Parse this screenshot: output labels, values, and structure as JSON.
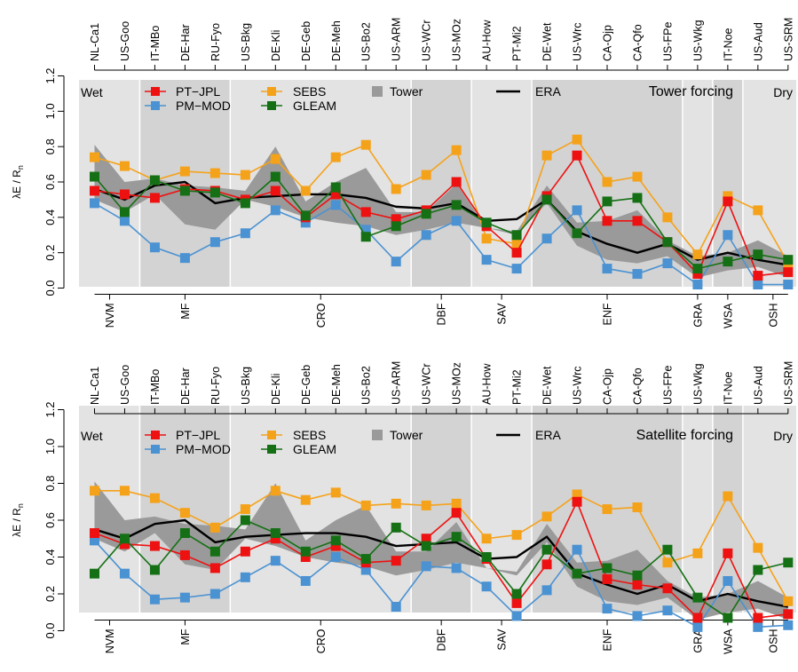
{
  "chart_data": [
    {
      "type": "line",
      "title": "Tower forcing",
      "ylabel_main": "λE / R",
      "ylabel_sub": "n",
      "ylim": [
        0,
        1.2
      ],
      "yticks": [
        "0.0",
        "0.2",
        "0.4",
        "0.6",
        "0.8",
        "1.0",
        "1.2"
      ],
      "corner_left": "Wet",
      "corner_right": "Dry",
      "sites": [
        "NL-Ca1",
        "US-Goo",
        "IT-MBo",
        "DE-Har",
        "RU-Fyo",
        "US-Bkg",
        "DE-Kli",
        "DE-Geb",
        "DE-Meh",
        "US-Bo2",
        "US-ARM",
        "US-WCr",
        "US-MOz",
        "AU-How",
        "PT-Mi2",
        "DE-Wet",
        "US-Wrc",
        "CA-Ojp",
        "CA-Qfo",
        "US-FPe",
        "US-Wkg",
        "IT-Noe",
        "US-Aud",
        "US-SRM"
      ],
      "groups": [
        {
          "name": "NVM",
          "start": 0,
          "end": 1
        },
        {
          "name": "MF",
          "start": 2,
          "end": 4
        },
        {
          "name": "CRO",
          "start": 5,
          "end": 10
        },
        {
          "name": "DBF",
          "start": 11,
          "end": 12
        },
        {
          "name": "SAV",
          "start": 13,
          "end": 14
        },
        {
          "name": "ENF",
          "start": 15,
          "end": 19
        },
        {
          "name": "GRA",
          "start": 20,
          "end": 20
        },
        {
          "name": "WSA",
          "start": 21,
          "end": 21
        },
        {
          "name": "OSH",
          "start": 22,
          "end": 23
        }
      ],
      "legend": {
        "PT-JPL": "PT−JPL",
        "PM-MOD": "PM−MOD",
        "SEBS": "SEBS",
        "GLEAM": "GLEAM",
        "Tower": "Tower",
        "ERA": "ERA"
      },
      "colors": {
        "PT-JPL": "#ee1111",
        "PM-MOD": "#4b92d2",
        "SEBS": "#f5a21b",
        "GLEAM": "#157015",
        "ERA": "#000000",
        "Tower": "#9a9a9a",
        "band_light": "#e3e3e3",
        "band_dark": "#d3d3d3"
      },
      "tower_band": {
        "lower": [
          0.5,
          0.43,
          0.53,
          0.36,
          0.33,
          0.5,
          0.46,
          0.4,
          0.37,
          0.35,
          0.3,
          0.33,
          0.37,
          0.34,
          0.3,
          0.48,
          0.24,
          0.16,
          0.14,
          0.18,
          0.06,
          0.1,
          0.12,
          0.06
        ],
        "upper": [
          0.81,
          0.6,
          0.62,
          0.58,
          0.57,
          0.55,
          0.8,
          0.49,
          0.6,
          0.68,
          0.43,
          0.43,
          0.59,
          0.34,
          0.32,
          0.58,
          0.37,
          0.38,
          0.44,
          0.27,
          0.18,
          0.2,
          0.27,
          0.18
        ]
      },
      "series": [
        {
          "name": "ERA",
          "values": [
            0.56,
            0.5,
            0.58,
            0.6,
            0.48,
            0.51,
            0.52,
            0.53,
            0.53,
            0.51,
            0.46,
            0.45,
            0.48,
            0.38,
            0.39,
            0.5,
            0.32,
            0.25,
            0.2,
            0.25,
            0.16,
            0.2,
            0.16,
            0.13
          ]
        },
        {
          "name": "PM-MOD",
          "values": [
            0.48,
            0.38,
            0.23,
            0.17,
            0.26,
            0.31,
            0.44,
            0.37,
            0.47,
            0.33,
            0.15,
            0.3,
            0.38,
            0.16,
            0.11,
            0.28,
            0.44,
            0.11,
            0.08,
            0.14,
            0.02,
            0.3,
            0.02,
            0.02
          ]
        },
        {
          "name": "SEBS",
          "values": [
            0.74,
            0.69,
            0.61,
            0.66,
            0.65,
            0.64,
            0.73,
            0.55,
            0.74,
            0.81,
            0.56,
            0.64,
            0.78,
            0.28,
            0.25,
            0.75,
            0.84,
            0.6,
            0.63,
            0.4,
            0.19,
            0.52,
            0.44,
            0.14
          ]
        },
        {
          "name": "PT-JPL",
          "values": [
            0.55,
            0.53,
            0.51,
            0.56,
            0.55,
            0.5,
            0.55,
            0.4,
            0.53,
            0.43,
            0.39,
            0.44,
            0.6,
            0.35,
            0.2,
            0.52,
            0.75,
            0.38,
            0.38,
            0.26,
            0.08,
            0.49,
            0.07,
            0.09
          ]
        },
        {
          "name": "GLEAM",
          "values": [
            0.63,
            0.43,
            0.61,
            0.55,
            0.54,
            0.48,
            0.63,
            0.41,
            0.57,
            0.29,
            0.35,
            0.42,
            0.47,
            0.37,
            0.3,
            0.5,
            0.31,
            0.49,
            0.51,
            0.26,
            0.11,
            0.15,
            0.19,
            0.16
          ]
        }
      ]
    },
    {
      "type": "line",
      "title": "Satellite forcing",
      "ylabel_main": "λE / R",
      "ylabel_sub": "n",
      "ylim": [
        0,
        1.2
      ],
      "yticks": [
        "0.0",
        "0.2",
        "0.4",
        "0.6",
        "0.8",
        "1.0",
        "1.2"
      ],
      "corner_left": "Wet",
      "corner_right": "Dry",
      "sites": [
        "NL-Ca1",
        "US-Goo",
        "IT-MBo",
        "DE-Har",
        "RU-Fyo",
        "US-Bkg",
        "DE-Kli",
        "DE-Geb",
        "DE-Meh",
        "US-Bo2",
        "US-ARM",
        "US-WCr",
        "US-MOz",
        "AU-How",
        "PT-Mi2",
        "DE-Wet",
        "US-Wrc",
        "CA-Ojp",
        "CA-Qfo",
        "US-FPe",
        "US-Wkg",
        "IT-Noe",
        "US-Aud",
        "US-SRM"
      ],
      "groups": [
        {
          "name": "NVM",
          "start": 0,
          "end": 1
        },
        {
          "name": "MF",
          "start": 2,
          "end": 4
        },
        {
          "name": "CRO",
          "start": 5,
          "end": 10
        },
        {
          "name": "DBF",
          "start": 11,
          "end": 12
        },
        {
          "name": "SAV",
          "start": 13,
          "end": 14
        },
        {
          "name": "ENF",
          "start": 15,
          "end": 19
        },
        {
          "name": "GRA",
          "start": 20,
          "end": 20
        },
        {
          "name": "WSA",
          "start": 21,
          "end": 21
        },
        {
          "name": "OSH",
          "start": 22,
          "end": 23
        }
      ],
      "legend": {
        "PT-JPL": "PT−JPL",
        "PM-MOD": "PM−MOD",
        "SEBS": "SEBS",
        "GLEAM": "GLEAM",
        "Tower": "Tower",
        "ERA": "ERA"
      },
      "colors": {
        "PT-JPL": "#ee1111",
        "PM-MOD": "#4b92d2",
        "SEBS": "#f5a21b",
        "GLEAM": "#157015",
        "ERA": "#000000",
        "Tower": "#9a9a9a",
        "band_light": "#e3e3e3",
        "band_dark": "#d3d3d3"
      },
      "tower_band": {
        "lower": [
          0.5,
          0.43,
          0.53,
          0.36,
          0.33,
          0.5,
          0.46,
          0.4,
          0.37,
          0.35,
          0.3,
          0.33,
          0.37,
          0.34,
          0.3,
          0.48,
          0.24,
          0.16,
          0.14,
          0.18,
          0.06,
          0.1,
          0.12,
          0.06
        ],
        "upper": [
          0.81,
          0.6,
          0.62,
          0.58,
          0.57,
          0.55,
          0.8,
          0.49,
          0.6,
          0.68,
          0.43,
          0.43,
          0.59,
          0.34,
          0.32,
          0.58,
          0.37,
          0.38,
          0.44,
          0.27,
          0.18,
          0.2,
          0.27,
          0.18
        ]
      },
      "series": [
        {
          "name": "ERA",
          "values": [
            0.55,
            0.5,
            0.58,
            0.6,
            0.48,
            0.51,
            0.52,
            0.53,
            0.53,
            0.51,
            0.46,
            0.47,
            0.48,
            0.39,
            0.4,
            0.51,
            0.31,
            0.25,
            0.2,
            0.25,
            0.16,
            0.2,
            0.16,
            0.13
          ]
        },
        {
          "name": "PM-MOD",
          "values": [
            0.49,
            0.31,
            0.17,
            0.18,
            0.2,
            0.29,
            0.38,
            0.27,
            0.4,
            0.33,
            0.13,
            0.35,
            0.34,
            0.24,
            0.08,
            0.22,
            0.44,
            0.12,
            0.08,
            0.11,
            0.02,
            0.27,
            0.02,
            0.03
          ]
        },
        {
          "name": "SEBS",
          "values": [
            0.76,
            0.76,
            0.72,
            0.64,
            0.56,
            0.66,
            0.76,
            0.71,
            0.75,
            0.68,
            0.69,
            0.68,
            0.69,
            0.5,
            0.52,
            0.62,
            0.74,
            0.66,
            0.67,
            0.37,
            0.42,
            0.73,
            0.45,
            0.16
          ]
        },
        {
          "name": "PT-JPL",
          "values": [
            0.53,
            0.47,
            0.46,
            0.41,
            0.34,
            0.43,
            0.5,
            0.4,
            0.46,
            0.37,
            0.38,
            0.5,
            0.64,
            0.39,
            0.15,
            0.36,
            0.7,
            0.28,
            0.25,
            0.23,
            0.07,
            0.42,
            0.07,
            0.09
          ]
        },
        {
          "name": "GLEAM",
          "values": [
            0.31,
            0.5,
            0.33,
            0.53,
            0.43,
            0.6,
            0.53,
            0.43,
            0.49,
            0.39,
            0.56,
            0.46,
            0.51,
            0.4,
            0.2,
            0.44,
            0.31,
            0.34,
            0.3,
            0.44,
            0.18,
            0.07,
            0.33,
            0.37
          ]
        }
      ]
    }
  ]
}
